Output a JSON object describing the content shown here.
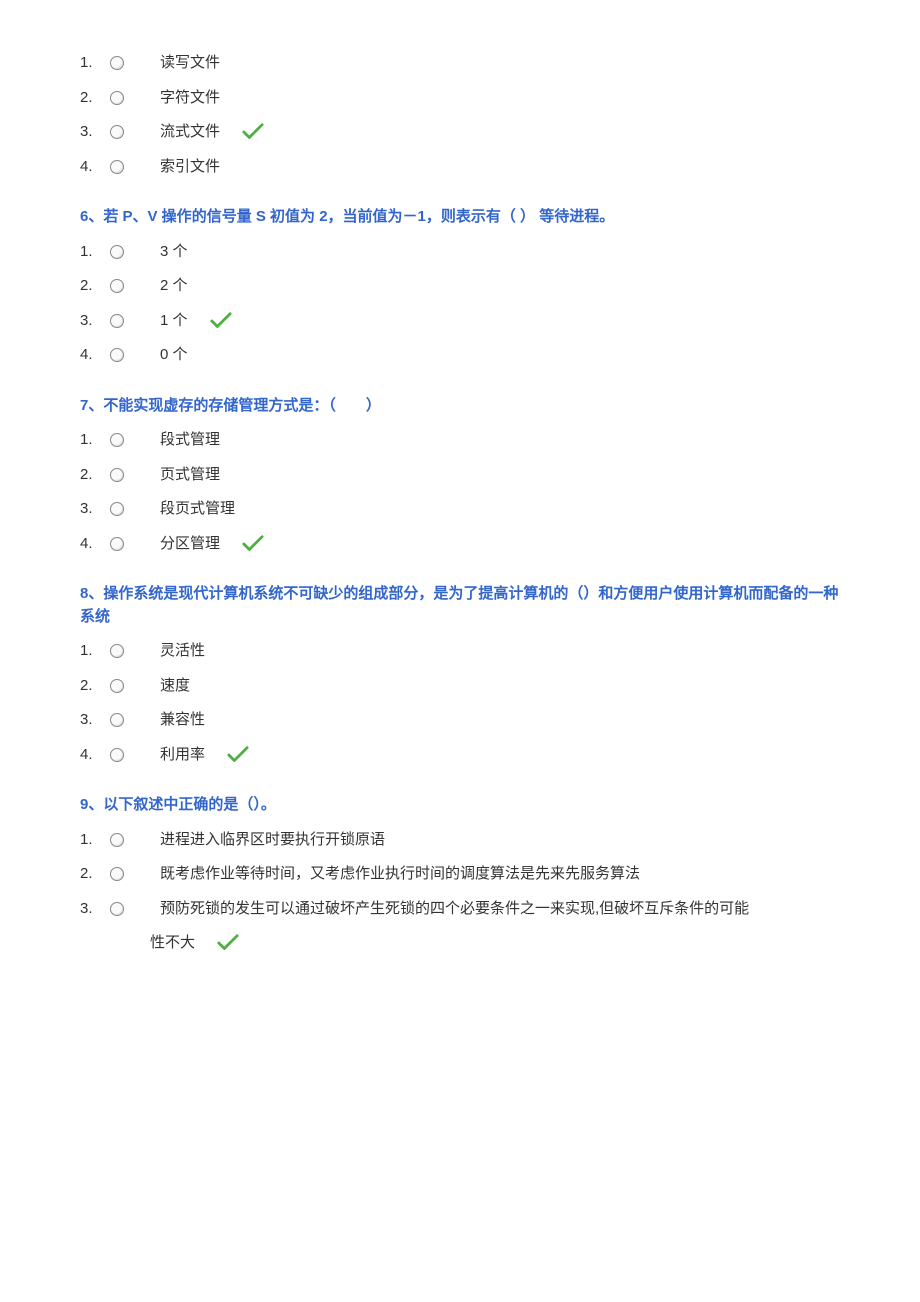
{
  "check_color": "#4caf3e",
  "questions": [
    {
      "title": "",
      "options": [
        {
          "num": "1.",
          "label": "读写文件",
          "correct": false
        },
        {
          "num": "2.",
          "label": "字符文件",
          "correct": false
        },
        {
          "num": "3.",
          "label": "流式文件",
          "correct": true
        },
        {
          "num": "4.",
          "label": "索引文件",
          "correct": false
        }
      ]
    },
    {
      "title": "6、若 P、V 操作的信号量 S 初值为 2，当前值为－1，则表示有（ ） 等待进程。",
      "options": [
        {
          "num": "1.",
          "label": "3 个",
          "correct": false
        },
        {
          "num": "2.",
          "label": "2 个",
          "correct": false
        },
        {
          "num": "3.",
          "label": "1 个",
          "correct": true
        },
        {
          "num": "4.",
          "label": "0 个",
          "correct": false
        }
      ]
    },
    {
      "title": "7、不能实现虚存的存储管理方式是：（　　）",
      "options": [
        {
          "num": "1.",
          "label": "段式管理",
          "correct": false
        },
        {
          "num": "2.",
          "label": "页式管理",
          "correct": false
        },
        {
          "num": "3.",
          "label": "段页式管理",
          "correct": false
        },
        {
          "num": "4.",
          "label": "分区管理",
          "correct": true
        }
      ]
    },
    {
      "title": "8、操作系统是现代计算机系统不可缺少的组成部分，是为了提高计算机的（）和方便用户使用计算机而配备的一种系统",
      "options": [
        {
          "num": "1.",
          "label": "灵活性",
          "correct": false
        },
        {
          "num": "2.",
          "label": "速度",
          "correct": false
        },
        {
          "num": "3.",
          "label": "兼容性",
          "correct": false
        },
        {
          "num": "4.",
          "label": "利用率",
          "correct": true
        }
      ]
    },
    {
      "title": "9、以下叙述中正确的是（）。",
      "options": [
        {
          "num": "1.",
          "label": "进程进入临界区时要执行开锁原语",
          "correct": false
        },
        {
          "num": "2.",
          "label": "既考虑作业等待时间，又考虑作业执行时间的调度算法是先来先服务算法",
          "correct": false
        },
        {
          "num": "3.",
          "label": "预防死锁的发生可以通过破坏产生死锁的四个必要条件之一来实现,但破坏互斥条件的可能",
          "label2": "性不大",
          "correct": true
        }
      ]
    }
  ]
}
